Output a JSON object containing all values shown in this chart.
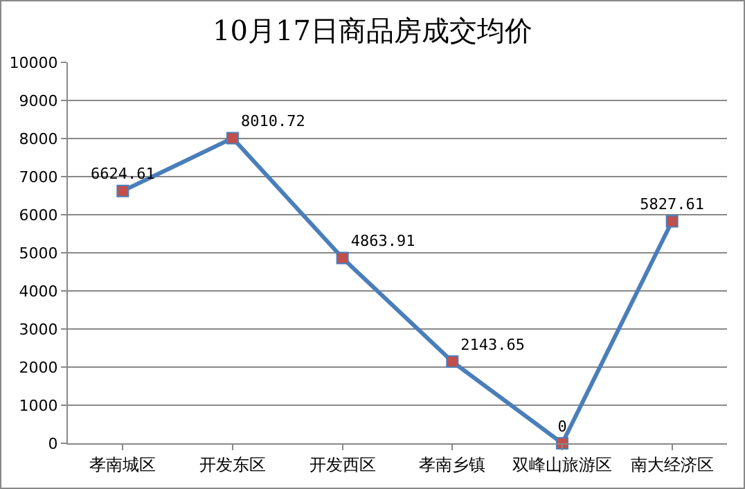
{
  "chart_data": {
    "type": "line",
    "title": "10月17日商品房成交均价",
    "categories": [
      "孝南城区",
      "开发东区",
      "开发西区",
      "孝南乡镇",
      "双峰山旅游区",
      "南大经济区"
    ],
    "series": [
      {
        "color": "#4a7ebb",
        "values": [
          6624.61,
          8010.72,
          4863.91,
          2143.65,
          0,
          5827.61
        ]
      }
    ],
    "ylim": [
      0,
      10000
    ],
    "yticks": [
      0,
      1000,
      2000,
      3000,
      4000,
      5000,
      6000,
      7000,
      8000,
      9000,
      10000
    ],
    "grid": "y",
    "legend": false,
    "marker": "square",
    "line_style": "solid",
    "data_labels": true
  }
}
